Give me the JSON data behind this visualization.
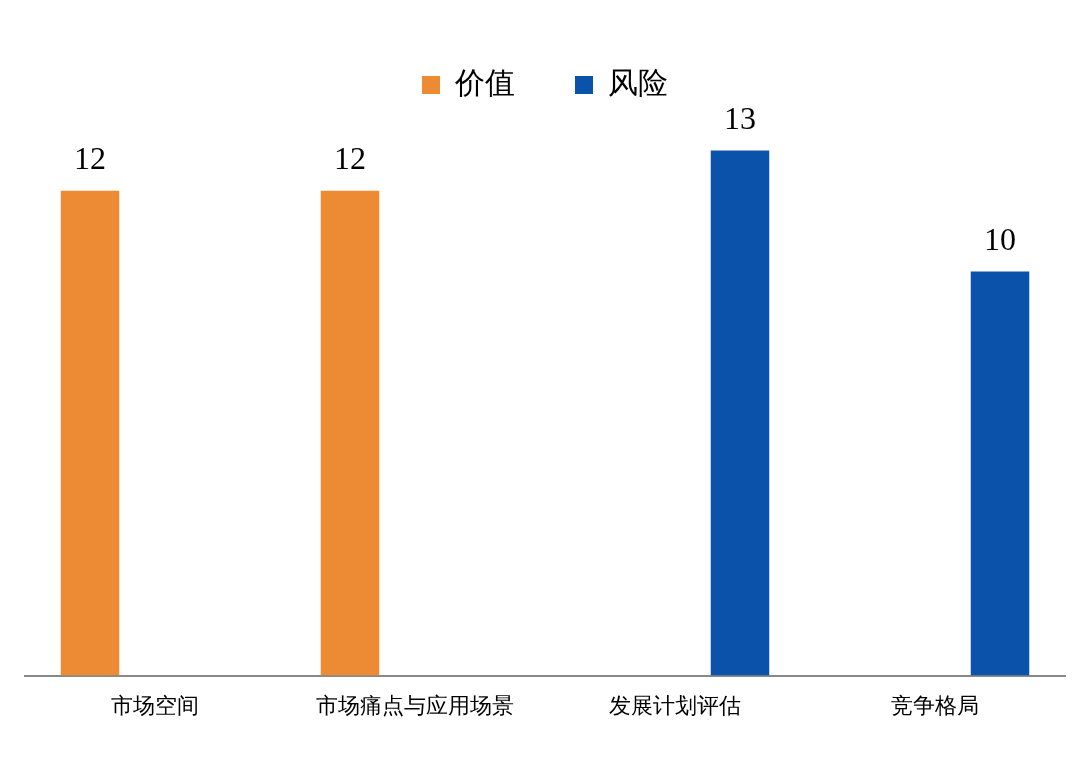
{
  "chart_data": {
    "type": "bar",
    "categories": [
      "市场空间",
      "市场痛点与应用场景",
      "发展计划评估",
      "竞争格局"
    ],
    "series": [
      {
        "name": "价值",
        "color": "#ed8b34",
        "values": [
          12,
          12,
          null,
          null
        ]
      },
      {
        "name": "风险",
        "color": "#0b52ab",
        "values": [
          null,
          null,
          13,
          10
        ]
      }
    ],
    "data_labels": true,
    "legend": "top",
    "grid": false
  }
}
